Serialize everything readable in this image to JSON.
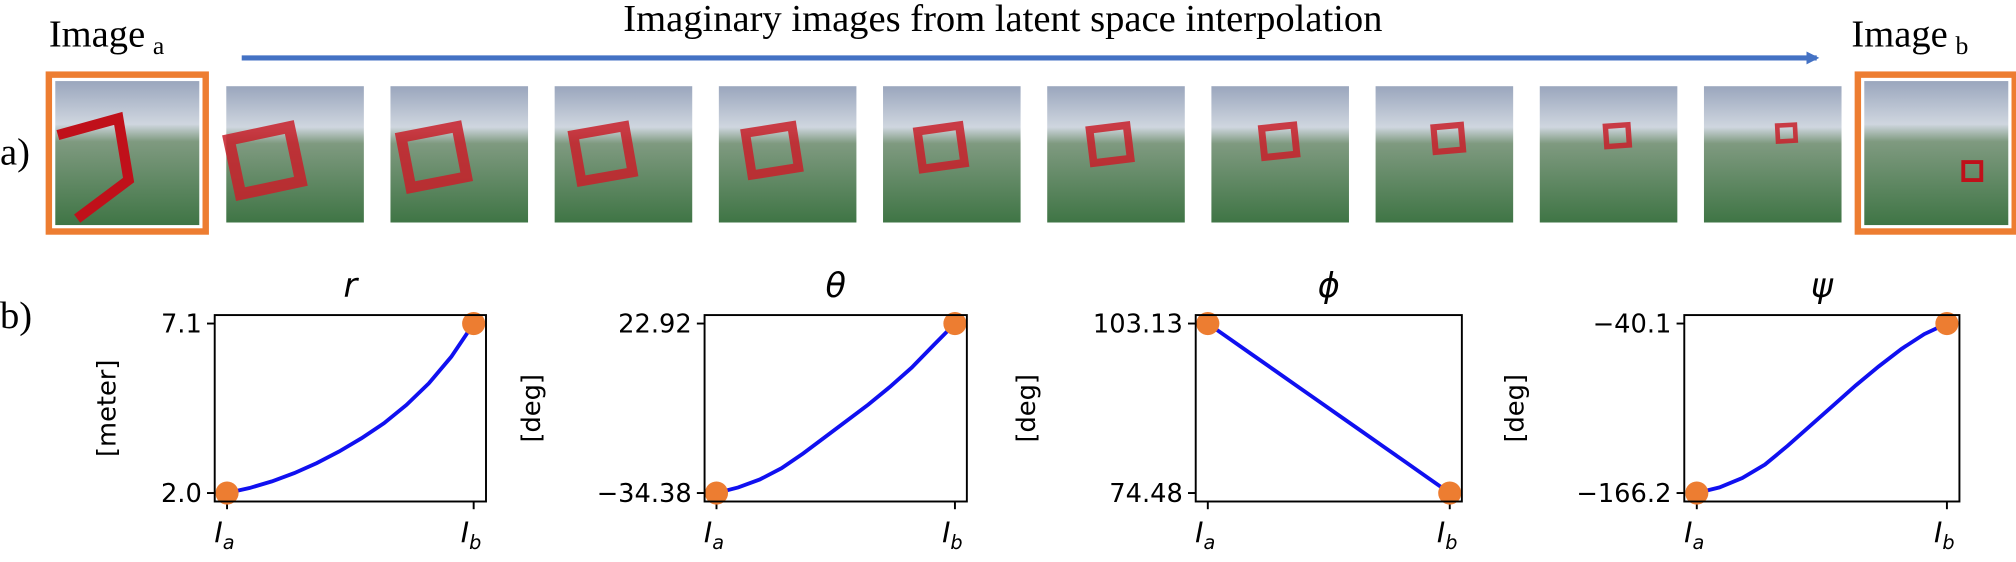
{
  "header": {
    "image_a": {
      "text": "Image",
      "sub": "a"
    },
    "image_b": {
      "text": "Image",
      "sub": "b"
    },
    "title": "Imaginary images from latent space interpolation",
    "panel_a": "a)",
    "panel_b": "b)"
  },
  "chart_data": [
    {
      "type": "line",
      "title": "r",
      "ylabel": "[meter]",
      "x": [
        0,
        1,
        2,
        3,
        4,
        5,
        6,
        7,
        8,
        9,
        10,
        11
      ],
      "xlim": [
        -0.55,
        11.55
      ],
      "xticks": [
        {
          "value": 0,
          "label": "I",
          "sub": "a"
        },
        {
          "value": 11,
          "label": "I",
          "sub": "b"
        }
      ],
      "ylim": [
        1.745,
        7.355
      ],
      "yticks": [
        {
          "value": 2,
          "label": "2.0"
        },
        7.1
      ],
      "line_color": "#1010f0",
      "marker_color": "#ed7d31",
      "values": [
        2.0,
        2.15,
        2.35,
        2.6,
        2.9,
        3.25,
        3.65,
        4.1,
        4.65,
        5.3,
        6.1,
        7.1
      ]
    },
    {
      "type": "line",
      "title": "θ",
      "ylabel": "[deg]",
      "x": [
        0,
        1,
        2,
        3,
        4,
        5,
        6,
        7,
        8,
        9,
        10,
        11
      ],
      "xlim": [
        -0.55,
        11.55
      ],
      "xticks": [
        {
          "value": 0,
          "label": "I",
          "sub": "a"
        },
        {
          "value": 11,
          "label": "I",
          "sub": "b"
        }
      ],
      "ylim": [
        -37.245,
        25.785
      ],
      "yticks": [
        {
          "value": -34.38,
          "label": "−34.38"
        },
        22.92
      ],
      "line_color": "#1010f0",
      "marker_color": "#ed7d31",
      "values": [
        -34.38,
        -32.5,
        -29.8,
        -26,
        -21,
        -15.5,
        -10,
        -4.5,
        1.5,
        8,
        15.5,
        22.92
      ]
    },
    {
      "type": "line",
      "title": "ϕ",
      "ylabel": "[deg]",
      "x": [
        0,
        1,
        2,
        3,
        4,
        5,
        6,
        7,
        8,
        9,
        10,
        11
      ],
      "xlim": [
        -0.55,
        11.55
      ],
      "xticks": [
        {
          "value": 0,
          "label": "I",
          "sub": "a"
        },
        {
          "value": 11,
          "label": "I",
          "sub": "b"
        }
      ],
      "ylim": [
        73.0475,
        104.5625
      ],
      "yticks": [
        74.48,
        103.13
      ],
      "line_color": "#1010f0",
      "marker_color": "#ed7d31",
      "values": [
        103.13,
        100.53,
        97.92,
        95.32,
        92.71,
        90.11,
        87.5,
        84.9,
        82.29,
        79.69,
        77.08,
        74.48
      ]
    },
    {
      "type": "line",
      "title": "ψ",
      "ylabel": "[deg]",
      "x": [
        0,
        1,
        2,
        3,
        4,
        5,
        6,
        7,
        8,
        9,
        10,
        11
      ],
      "xlim": [
        -0.55,
        11.55
      ],
      "xticks": [
        {
          "value": 0,
          "label": "I",
          "sub": "a"
        },
        {
          "value": 11,
          "label": "I",
          "sub": "b"
        }
      ],
      "ylim": [
        -172.505,
        -33.795
      ],
      "yticks": [
        {
          "value": -166.2,
          "label": "−166.2"
        },
        {
          "value": -40.1,
          "label": "−40.1"
        }
      ],
      "line_color": "#1010f0",
      "marker_color": "#ed7d31",
      "values": [
        -166.2,
        -162,
        -155,
        -145,
        -131,
        -116,
        -101,
        -86,
        -72,
        -59,
        -48,
        -40.1
      ]
    }
  ]
}
